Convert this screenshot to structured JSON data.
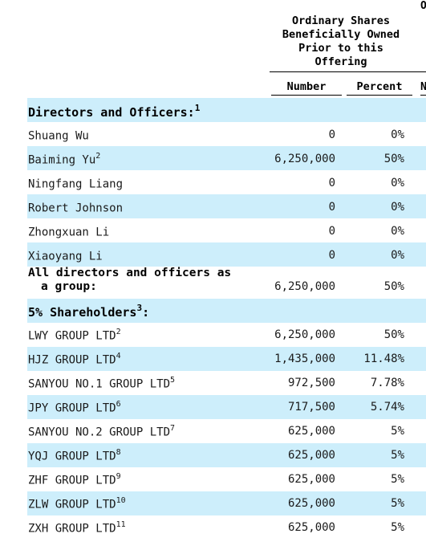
{
  "header": {
    "group_lines": [
      "Ordinary Shares",
      "Beneficially Owned",
      "Prior to this",
      "Offering"
    ],
    "edge_char": "O",
    "col_number": "Number",
    "col_percent": "Percent",
    "edge_col": "N"
  },
  "section1": {
    "title": "Directors and Officers:",
    "footnote": "1"
  },
  "directors": [
    {
      "name": "Shuang Wu",
      "fn": "",
      "number": "0",
      "percent": "0%"
    },
    {
      "name": "Baiming Yu",
      "fn": "2",
      "number": "6,250,000",
      "percent": "50%"
    },
    {
      "name": "Ningfang Liang",
      "fn": "",
      "number": "0",
      "percent": "0%"
    },
    {
      "name": "Robert Johnson",
      "fn": "",
      "number": "0",
      "percent": "0%"
    },
    {
      "name": "Zhongxuan Li",
      "fn": "",
      "number": "0",
      "percent": "0%"
    },
    {
      "name": "Xiaoyang Li",
      "fn": "",
      "number": "0",
      "percent": "0%"
    }
  ],
  "group_total": {
    "line1": "All directors and officers as",
    "line2": "a group:",
    "number": "6,250,000",
    "percent": "50%"
  },
  "section2": {
    "title": "5% Shareholders",
    "footnote": "3",
    "suffix": ":"
  },
  "shareholders": [
    {
      "name": "LWY GROUP LTD",
      "fn": "2",
      "number": "6,250,000",
      "percent": "50%"
    },
    {
      "name": "HJZ GROUP LTD",
      "fn": "4",
      "number": "1,435,000",
      "percent": "11.48%"
    },
    {
      "name": "SANYOU NO.1 GROUP LTD",
      "fn": "5",
      "number": "972,500",
      "percent": "7.78%"
    },
    {
      "name": "JPY GROUP LTD",
      "fn": "6",
      "number": "717,500",
      "percent": "5.74%"
    },
    {
      "name": "SANYOU NO.2 GROUP LTD",
      "fn": "7",
      "number": "625,000",
      "percent": "5%"
    },
    {
      "name": "YQJ GROUP LTD",
      "fn": "8",
      "number": "625,000",
      "percent": "5%"
    },
    {
      "name": "ZHF GROUP LTD",
      "fn": "9",
      "number": "625,000",
      "percent": "5%"
    },
    {
      "name": "ZLW GROUP LTD",
      "fn": "10",
      "number": "625,000",
      "percent": "5%"
    },
    {
      "name": "ZXH GROUP LTD",
      "fn": "11",
      "number": "625,000",
      "percent": "5%"
    }
  ],
  "colors": {
    "row_shade": "#cdeefb"
  }
}
